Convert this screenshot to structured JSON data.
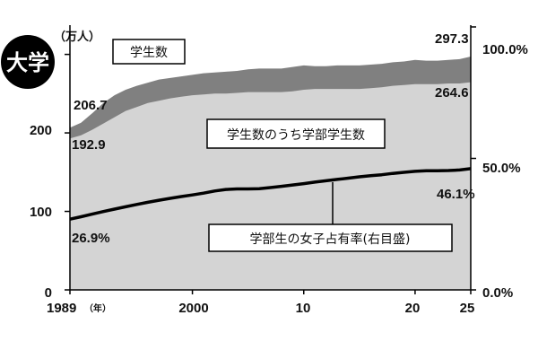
{
  "badge": "大学",
  "units": {
    "left": "（万人）"
  },
  "x_axis": {
    "first_label": "1989",
    "first_unit": "（年）",
    "tick_labels": [
      "2000",
      "10",
      "20",
      "25"
    ]
  },
  "y_left_ticks": [
    "0",
    "100",
    "200"
  ],
  "y_right_ticks": [
    "0.0%",
    "50.0%",
    "100.0%"
  ],
  "callouts": {
    "students": "学生数",
    "undergrads": "学生数のうち学部学生数",
    "female_share": "学部生の女子占有率(右目盛)"
  },
  "value_labels": {
    "students_start": "206.7",
    "students_end": "297.3",
    "undergrads_start": "192.9",
    "undergrads_end": "264.6",
    "female_start": "26.9%",
    "female_end": "46.1%"
  },
  "colors": {
    "students": "#808080",
    "undergrads": "#d4d4d4",
    "line": "#000000",
    "badge": "#000000"
  },
  "chart_data": {
    "type": "area",
    "x": [
      1989,
      1990,
      1991,
      1992,
      1993,
      1994,
      1995,
      1996,
      1997,
      1998,
      1999,
      2000,
      2001,
      2002,
      2003,
      2004,
      2005,
      2006,
      2007,
      2008,
      2009,
      2010,
      2011,
      2012,
      2013,
      2014,
      2015,
      2016,
      2017,
      2018,
      2019,
      2020,
      2021,
      2022,
      2023,
      2024,
      2025
    ],
    "xlim": [
      1989,
      2025
    ],
    "ylim_left": [
      0,
      335
    ],
    "ylim_right": [
      0,
      100
    ],
    "series": [
      {
        "name": "学生数",
        "axis": "left",
        "values": [
          206.7,
          213,
          225,
          238,
          248,
          255,
          260,
          264,
          268,
          270,
          272,
          274,
          276,
          277,
          278,
          279,
          281,
          282,
          282,
          282,
          284,
          286,
          285,
          285,
          286,
          286,
          286,
          287,
          288,
          290,
          291,
          293,
          292,
          292,
          293,
          294,
          297.3
        ]
      },
      {
        "name": "学生数のうち学部学生数",
        "axis": "left",
        "values": [
          192.9,
          197,
          204,
          212,
          220,
          228,
          233,
          238,
          241,
          244,
          246,
          248,
          249,
          250,
          250,
          251,
          252,
          252,
          252,
          252,
          253,
          255,
          256,
          256,
          256,
          256,
          256,
          257,
          258,
          260,
          261,
          262,
          262,
          262,
          263,
          263,
          264.6
        ]
      },
      {
        "name": "学部生の女子占有率",
        "axis": "right",
        "values": [
          26.9,
          27.8,
          28.8,
          29.8,
          30.7,
          31.6,
          32.5,
          33.3,
          34.1,
          34.8,
          35.5,
          36.1,
          36.8,
          37.6,
          38.2,
          38.4,
          38.4,
          38.5,
          38.9,
          39.4,
          39.9,
          40.4,
          41.0,
          41.5,
          42.0,
          42.5,
          43.0,
          43.4,
          43.8,
          44.3,
          44.7,
          45.1,
          45.3,
          45.3,
          45.4,
          45.6,
          46.1
        ]
      }
    ]
  }
}
